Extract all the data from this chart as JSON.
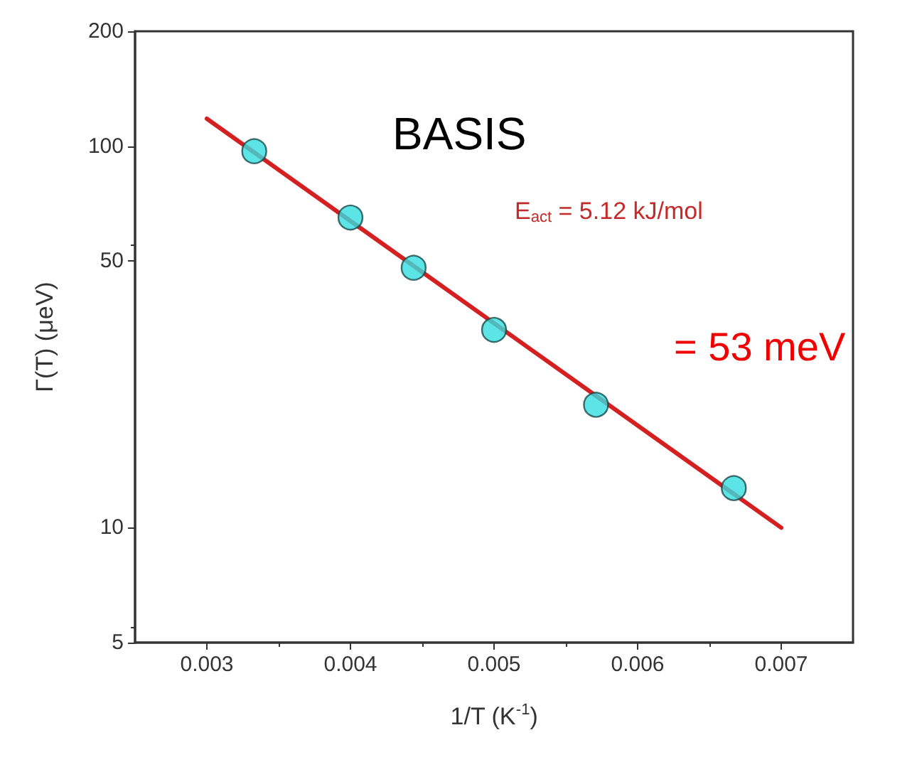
{
  "chart_data": {
    "type": "scatter",
    "xlabel": "1/T (K$^{-1}$)",
    "ylabel": "Γ(T) (μeV)",
    "annotations": [
      "BASIS",
      "E$_{act}$ = 5.12 kJ/mol",
      "= 53 meV"
    ],
    "series": [
      {
        "color": "#33dde0",
        "x": [
          0.00333,
          0.004,
          0.00444,
          0.005,
          0.00571,
          0.00667
        ],
        "values": [
          97,
          65,
          48,
          33,
          21,
          12.7
        ],
        "marker": "circle"
      },
      {
        "type": "line",
        "color": "#d42020",
        "x": [
          0.003,
          0.007
        ],
        "values": [
          118,
          10
        ],
        "marker": "none",
        "line_style": "solid"
      }
    ],
    "xlim": [
      0.0025,
      0.0075
    ],
    "xticks": [
      0.003,
      0.004,
      0.005,
      0.006,
      0.007
    ],
    "ylim": [
      5,
      200
    ],
    "yticks": [
      5,
      10,
      50,
      100,
      200
    ],
    "log": "y",
    "grid": false
  }
}
